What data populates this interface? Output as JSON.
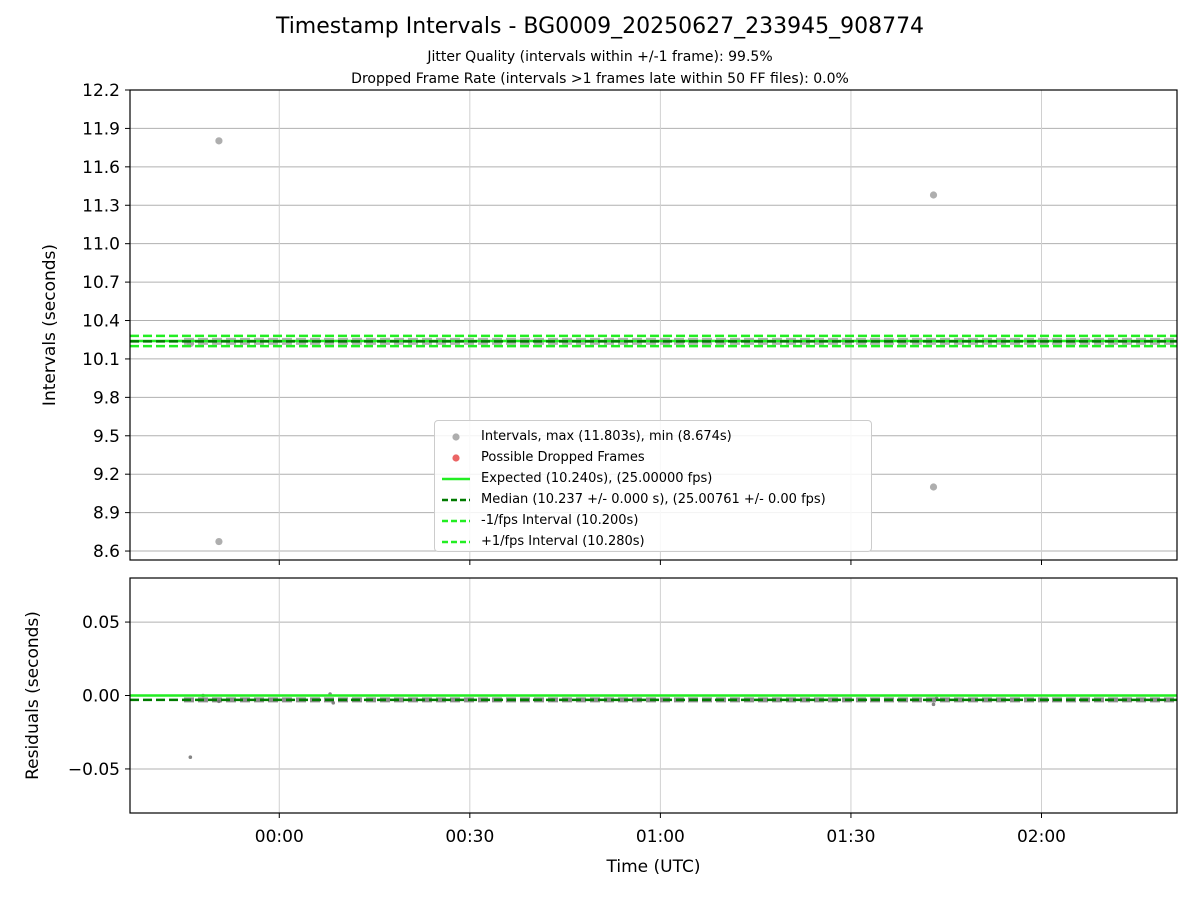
{
  "chart_data": [
    {
      "type": "scatter",
      "title": "Timestamp Intervals - BG0009_20250627_233945_908774",
      "subtitles": [
        "Jitter Quality (intervals within +/-1 frame): 99.5%",
        "Dropped Frame Rate (intervals >1 frames late within 50 FF files): 0.0%"
      ],
      "ylabel": "Intervals (seconds)",
      "xlabel": "",
      "ylim": [
        8.53,
        12.2
      ],
      "yticks": [
        "12.2",
        "11.9",
        "11.6",
        "11.3",
        "11.0",
        "10.7",
        "10.4",
        "10.1",
        "9.8",
        "9.5",
        "9.2",
        "8.9",
        "8.6"
      ],
      "grid": true,
      "legend_position": "lower-center",
      "series": [
        {
          "name": "Intervals, max (11.803s), min (8.674s)",
          "color": "#a0a0a0",
          "points": [
            {
              "t": "23:46:00",
              "y": 10.22
            },
            {
              "t": "23:50:30",
              "y": 11.803
            },
            {
              "t": "23:50:30",
              "y": 8.674
            },
            {
              "t": "01:43:00",
              "y": 11.38
            },
            {
              "t": "01:43:00",
              "y": 9.1
            }
          ],
          "band": {
            "from": "23:45:00",
            "to": "02:21:00",
            "y": 10.237
          }
        },
        {
          "name": "Possible Dropped Frames",
          "color": "#e84a4a",
          "points": []
        },
        {
          "name": "Expected (10.240s), (25.00000 fps)",
          "color": "#22ee22",
          "style": "solid",
          "y": 10.24
        },
        {
          "name": "Median (10.237 +/- 0.000 s), (25.00761 +/- 0.00 fps)",
          "color": "#007a00",
          "style": "dashed",
          "y": 10.237
        },
        {
          "name": "-1/fps Interval (10.200s)",
          "color": "#22ee22",
          "style": "dashed",
          "y": 10.2
        },
        {
          "name": "+1/fps Interval (10.280s)",
          "color": "#22ee22",
          "style": "dashed",
          "y": 10.28
        }
      ]
    },
    {
      "type": "scatter",
      "title": "",
      "ylabel": "Residuals (seconds)",
      "xlabel": "Time (UTC)",
      "ylim": [
        -0.08,
        0.08
      ],
      "yticks": [
        "0.05",
        "0.00",
        "−0.05"
      ],
      "xticks": [
        "00:00",
        "00:30",
        "01:00",
        "01:30",
        "02:00"
      ],
      "xlim": [
        "23:36:30",
        "02:21:20"
      ],
      "grid": true,
      "series": [
        {
          "name": "Residuals",
          "color": "#707070",
          "points": [
            {
              "t": "23:46:00",
              "y": -0.042
            },
            {
              "t": "23:48:00",
              "y": 0.0
            },
            {
              "t": "23:50:30",
              "y": -0.004
            },
            {
              "t": "00:08:00",
              "y": 0.001
            },
            {
              "t": "00:08:30",
              "y": -0.005
            },
            {
              "t": "00:43:00",
              "y": -0.003
            },
            {
              "t": "01:43:00",
              "y": -0.006
            },
            {
              "t": "01:43:30",
              "y": -0.002
            }
          ],
          "band": {
            "from": "23:45:00",
            "to": "02:21:00",
            "y": -0.003
          }
        },
        {
          "name": "Expected",
          "color": "#22ee22",
          "style": "solid",
          "y": 0.0
        },
        {
          "name": "Median",
          "color": "#007a00",
          "style": "dashed",
          "y": -0.003
        }
      ]
    }
  ]
}
